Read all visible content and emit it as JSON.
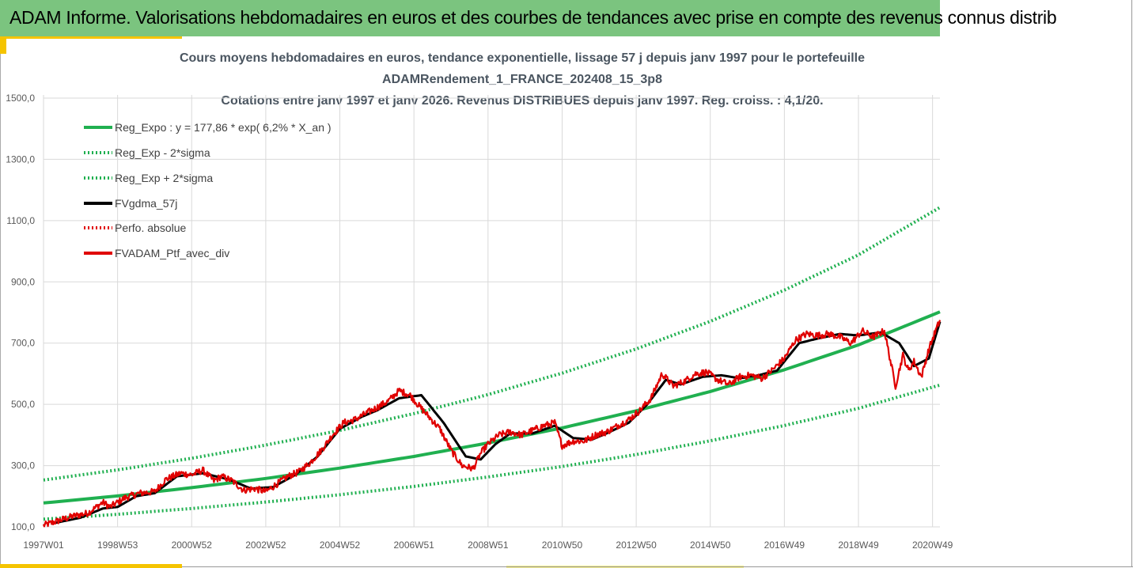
{
  "header": {
    "title": "ADAM Informe. Valorisations hebdomadaires en euros et des courbes de tendances avec prise en compte des revenus connus distrib"
  },
  "chart_data": {
    "type": "line",
    "title": [
      "Cours moyens hebdomadaires en euros, tendance exponentielle, lissage 57 j depuis janv 1997 pour le portefeuille",
      "ADAMRendement_1_FRANCE_202408_15_3p8",
      "Cotations entre janv 1997 et janv 2026. Revenus DISTRIBUES depuis janv 1997. Reg. croiss. : 4,1/20."
    ],
    "xlabel": "",
    "ylabel": "",
    "ylim": [
      100,
      1500
    ],
    "xlim": [
      1997.0,
      2021.2
    ],
    "yticks": [
      "100,0",
      "300,0",
      "500,0",
      "700,0",
      "900,0",
      "1100,0",
      "1300,0",
      "1500,0"
    ],
    "ytick_values": [
      100,
      300,
      500,
      700,
      900,
      1100,
      1300,
      1500
    ],
    "xticks": [
      "1997W01",
      "1998W53",
      "2000W52",
      "2002W52",
      "2004W52",
      "2006W51",
      "2008W51",
      "2010W50",
      "2012W50",
      "2014W50",
      "2016W49",
      "2018W49",
      "2020W49"
    ],
    "xtick_values": [
      1997.0,
      1999.0,
      2001.0,
      2003.0,
      2005.0,
      2007.0,
      2009.0,
      2011.0,
      2013.0,
      2015.0,
      2017.0,
      2019.0,
      2021.0
    ],
    "series": [
      {
        "name": "Reg_Expo : y = 177,86 * exp( 6,2% *  X_an )",
        "color": "#20b050",
        "style": "solid",
        "x": [
          1997,
          1999,
          2001,
          2003,
          2005,
          2007,
          2009,
          2011,
          2013,
          2015,
          2017,
          2019,
          2021.2
        ],
        "values": [
          178,
          201,
          228,
          258,
          292,
          330,
          374,
          423,
          479,
          542,
          613,
          694,
          802
        ]
      },
      {
        "name": "Reg_Exp - 2*sigma",
        "color": "#20b050",
        "style": "dotted",
        "x": [
          1997,
          1999,
          2001,
          2003,
          2005,
          2007,
          2009,
          2011,
          2013,
          2015,
          2017,
          2019,
          2021.2
        ],
        "values": [
          125,
          141,
          160,
          181,
          205,
          232,
          263,
          297,
          336,
          381,
          431,
          487,
          563
        ]
      },
      {
        "name": "Reg_Exp + 2*sigma",
        "color": "#20b050",
        "style": "dotted",
        "x": [
          1997,
          1999,
          2001,
          2003,
          2005,
          2007,
          2009,
          2011,
          2013,
          2015,
          2017,
          2019,
          2021.2
        ],
        "values": [
          253,
          286,
          324,
          367,
          415,
          470,
          532,
          602,
          681,
          771,
          873,
          988,
          1143
        ]
      },
      {
        "name": "FVgdma_57j",
        "color": "#000000",
        "style": "solid",
        "x": [
          1997.2,
          1998.0,
          1998.6,
          1999.0,
          1999.5,
          2000.0,
          2000.6,
          2001.3,
          2002.0,
          2002.6,
          2003.2,
          2003.8,
          2004.4,
          2005.0,
          2005.6,
          2006.0,
          2006.6,
          2007.2,
          2007.8,
          2008.4,
          2008.8,
          2009.2,
          2009.6,
          2010.2,
          2010.8,
          2011.3,
          2011.8,
          2012.2,
          2012.8,
          2013.3,
          2013.8,
          2014.2,
          2014.8,
          2015.3,
          2015.8,
          2016.3,
          2016.8,
          2017.4,
          2017.9,
          2018.5,
          2019.0,
          2019.6,
          2020.1,
          2020.5,
          2020.9,
          2021.2
        ],
        "values": [
          110,
          130,
          160,
          165,
          200,
          210,
          265,
          275,
          255,
          225,
          230,
          270,
          330,
          420,
          460,
          480,
          520,
          530,
          440,
          330,
          320,
          370,
          405,
          405,
          430,
          390,
          385,
          405,
          440,
          500,
          580,
          565,
          590,
          595,
          585,
          595,
          610,
          700,
          715,
          730,
          725,
          735,
          700,
          625,
          650,
          770
        ]
      },
      {
        "name": "Perfo. absolue",
        "color": "#e00000",
        "style": "dotted",
        "x": [],
        "values": []
      },
      {
        "name": "FVADAM_Ptf_avec_div",
        "color": "#e00000",
        "style": "solid",
        "x": [
          1997.0,
          1997.4,
          1997.8,
          1998.2,
          1998.6,
          1998.8,
          1999.2,
          1999.6,
          2000.0,
          2000.3,
          2000.7,
          2001.0,
          2001.3,
          2001.6,
          2001.8,
          2002.1,
          2002.4,
          2002.7,
          2003.0,
          2003.3,
          2003.6,
          2003.9,
          2004.2,
          2004.5,
          2004.8,
          2005.1,
          2005.4,
          2005.7,
          2006.0,
          2006.3,
          2006.6,
          2006.9,
          2007.1,
          2007.4,
          2007.7,
          2008.0,
          2008.3,
          2008.6,
          2008.8,
          2009.0,
          2009.3,
          2009.6,
          2009.9,
          2010.2,
          2010.5,
          2010.8,
          2011.0,
          2011.3,
          2011.6,
          2011.9,
          2012.2,
          2012.5,
          2012.8,
          2013.1,
          2013.4,
          2013.7,
          2014.0,
          2014.3,
          2014.6,
          2014.9,
          2015.2,
          2015.5,
          2015.8,
          2016.1,
          2016.4,
          2016.7,
          2017.0,
          2017.3,
          2017.6,
          2017.9,
          2018.2,
          2018.5,
          2018.8,
          2019.1,
          2019.4,
          2019.7,
          2020.0,
          2020.2,
          2020.35,
          2020.5,
          2020.7,
          2020.9,
          2021.05,
          2021.2
        ],
        "values": [
          105,
          120,
          135,
          145,
          180,
          165,
          195,
          210,
          215,
          255,
          275,
          270,
          285,
          250,
          265,
          250,
          220,
          225,
          215,
          240,
          265,
          280,
          310,
          350,
          400,
          440,
          450,
          470,
          490,
          510,
          545,
          530,
          500,
          460,
          420,
          350,
          300,
          290,
          340,
          370,
          400,
          410,
          400,
          415,
          430,
          440,
          365,
          380,
          380,
          400,
          410,
          430,
          450,
          480,
          520,
          600,
          560,
          575,
          600,
          605,
          580,
          565,
          590,
          595,
          585,
          615,
          650,
          710,
          730,
          725,
          730,
          720,
          700,
          740,
          720,
          740,
          560,
          660,
          610,
          640,
          590,
          680,
          730,
          775
        ]
      }
    ],
    "legend": [
      "Reg_Expo : y = 177,86 * exp( 6,2% *  X_an )",
      "Reg_Exp - 2*sigma",
      "Reg_Exp + 2*sigma",
      "FVgdma_57j",
      "Perfo. absolue",
      "FVADAM_Ptf_avec_div"
    ]
  }
}
